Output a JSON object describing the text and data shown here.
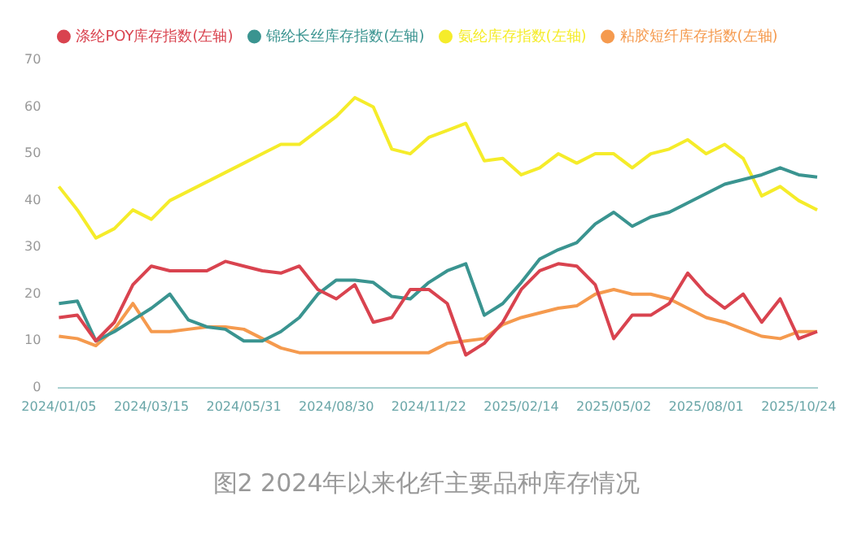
{
  "chart_data": {
    "type": "line",
    "categories": [
      "2024/01/05",
      null,
      null,
      null,
      null,
      "2024/03/15",
      null,
      null,
      null,
      null,
      "2024/05/31",
      null,
      null,
      null,
      null,
      "2024/08/30",
      null,
      null,
      null,
      null,
      "2024/11/22",
      null,
      null,
      null,
      null,
      "2025/02/14",
      null,
      null,
      null,
      null,
      "2025/05/02",
      null,
      null,
      null,
      null,
      "2025/08/01",
      null,
      null,
      null,
      null,
      "2025/10/24",
      null
    ],
    "series": [
      {
        "name": "涤纶POY库存指数(左轴)",
        "color": "#d9434f",
        "values": [
          15,
          15.5,
          10,
          14,
          22,
          26,
          25,
          25,
          25,
          27,
          26,
          25,
          24.5,
          26,
          21,
          19,
          22,
          14,
          15,
          21,
          21,
          18,
          7,
          9.5,
          14,
          21,
          25,
          26.5,
          26,
          22,
          10.5,
          15.5,
          15.5,
          18,
          24.5,
          20,
          17,
          20,
          14,
          19,
          10.5,
          12
        ]
      },
      {
        "name": "锦纶长丝库存指数(左轴)",
        "color": "#3a9490",
        "values": [
          18,
          18.5,
          10,
          12,
          14.5,
          17,
          20,
          14.5,
          13,
          12.5,
          10,
          10,
          12,
          15,
          20,
          23,
          23,
          22.5,
          19.5,
          19,
          22.5,
          25,
          26.5,
          15.5,
          18,
          22.5,
          27.5,
          29.5,
          31,
          35,
          37.5,
          34.5,
          36.5,
          37.5,
          39.5,
          41.5,
          43.5,
          44.5,
          45.5,
          47,
          45.5,
          45
        ]
      },
      {
        "name": "氨纶库存指数(左轴)",
        "color": "#f5ec2a",
        "values": [
          43,
          38,
          32,
          34,
          38,
          36,
          40,
          42,
          44,
          46,
          48,
          50,
          52,
          52,
          55,
          58,
          62,
          60,
          51,
          50,
          53.5,
          55,
          56.5,
          48.5,
          49,
          45.5,
          47,
          50,
          48,
          50,
          50,
          47,
          50,
          51,
          53,
          50,
          52,
          49,
          41,
          43,
          40,
          38
        ]
      },
      {
        "name": "粘胶短纤库存指数(左轴)",
        "color": "#f59a4e",
        "values": [
          11,
          10.5,
          9,
          12.5,
          18,
          12,
          12,
          12.5,
          13,
          13,
          12.5,
          10.5,
          8.5,
          7.5,
          7.5,
          7.5,
          7.5,
          7.5,
          7.5,
          7.5,
          7.5,
          9.5,
          10,
          10.5,
          13.5,
          15,
          16,
          17,
          17.5,
          20,
          21,
          20,
          20,
          19,
          17,
          15,
          14,
          12.5,
          11,
          10.5,
          12,
          12
        ]
      }
    ],
    "ylim": [
      0,
      70
    ],
    "yticks": [
      0,
      10,
      20,
      30,
      40,
      50,
      60,
      70
    ],
    "grid": false,
    "legend": "top",
    "marker": "none",
    "line_style": "solid",
    "annotations": [
      "图2  2024年以来化纤主要品种库存情况"
    ]
  }
}
